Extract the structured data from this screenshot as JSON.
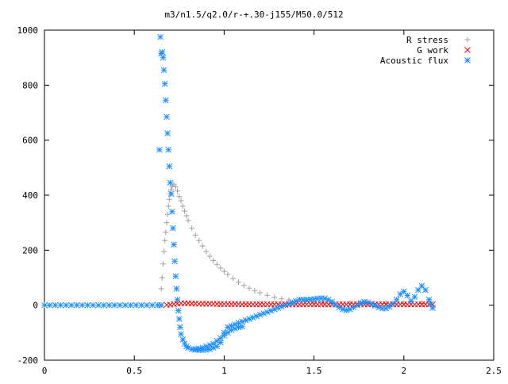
{
  "chart_data": {
    "type": "scatter",
    "title": "m3/n1.5/q2.0/r-+.30-j155/M50.0/512",
    "xlabel": "",
    "ylabel": "",
    "xlim": [
      0,
      2.5
    ],
    "ylim": [
      -200,
      1000
    ],
    "xticks": [
      "0",
      "0.5",
      "1",
      "1.5",
      "2",
      "2.5"
    ],
    "yticks": [
      "-200",
      "0",
      "200",
      "400",
      "600",
      "800",
      "1000"
    ],
    "grid": false,
    "legend_position": "top-right",
    "series": [
      {
        "name": "R stress",
        "marker": "plus",
        "color": "#a0a0a0",
        "points": [
          [
            0.65,
            60
          ],
          [
            0.655,
            100
          ],
          [
            0.66,
            150
          ],
          [
            0.665,
            195
          ],
          [
            0.67,
            235
          ],
          [
            0.675,
            265
          ],
          [
            0.68,
            300
          ],
          [
            0.685,
            330
          ],
          [
            0.69,
            360
          ],
          [
            0.695,
            385
          ],
          [
            0.7,
            405
          ],
          [
            0.705,
            420
          ],
          [
            0.71,
            432
          ],
          [
            0.72,
            440
          ],
          [
            0.73,
            430
          ],
          [
            0.74,
            415
          ],
          [
            0.75,
            395
          ],
          [
            0.76,
            380
          ],
          [
            0.77,
            360
          ],
          [
            0.78,
            342
          ],
          [
            0.79,
            325
          ],
          [
            0.8,
            308
          ],
          [
            0.82,
            280
          ],
          [
            0.84,
            255
          ],
          [
            0.86,
            235
          ],
          [
            0.88,
            215
          ],
          [
            0.9,
            195
          ],
          [
            0.92,
            178
          ],
          [
            0.94,
            162
          ],
          [
            0.96,
            148
          ],
          [
            0.98,
            135
          ],
          [
            1.0,
            123
          ],
          [
            1.02,
            112
          ],
          [
            1.05,
            97
          ],
          [
            1.08,
            84
          ],
          [
            1.11,
            72
          ],
          [
            1.14,
            62
          ],
          [
            1.17,
            53
          ],
          [
            1.2,
            45
          ],
          [
            1.24,
            36
          ],
          [
            1.28,
            29
          ],
          [
            1.32,
            23
          ],
          [
            1.36,
            19
          ],
          [
            1.4,
            16
          ],
          [
            1.45,
            13
          ],
          [
            1.5,
            11
          ],
          [
            1.55,
            10
          ],
          [
            1.6,
            9
          ],
          [
            1.7,
            8
          ],
          [
            1.8,
            7
          ],
          [
            1.9,
            7
          ],
          [
            2.0,
            6
          ],
          [
            2.1,
            6
          ],
          [
            2.15,
            6
          ]
        ]
      },
      {
        "name": "G work",
        "marker": "cross",
        "color": "#ff0000",
        "points": [
          [
            0.65,
            0
          ],
          [
            0.68,
            1
          ],
          [
            0.7,
            2
          ],
          [
            0.72,
            4
          ],
          [
            0.74,
            6
          ],
          [
            0.76,
            7
          ],
          [
            0.78,
            7
          ],
          [
            0.8,
            7
          ],
          [
            0.82,
            6
          ],
          [
            0.84,
            6
          ],
          [
            0.86,
            5
          ],
          [
            0.88,
            5
          ],
          [
            0.9,
            5
          ],
          [
            0.92,
            5
          ],
          [
            0.94,
            5
          ],
          [
            0.96,
            4
          ],
          [
            0.98,
            4
          ],
          [
            1.0,
            4
          ],
          [
            1.02,
            4
          ],
          [
            1.04,
            4
          ],
          [
            1.06,
            4
          ],
          [
            1.08,
            4
          ],
          [
            1.1,
            3
          ],
          [
            1.12,
            3
          ],
          [
            1.14,
            3
          ],
          [
            1.16,
            3
          ],
          [
            1.18,
            3
          ],
          [
            1.2,
            3
          ],
          [
            1.22,
            3
          ],
          [
            1.24,
            3
          ],
          [
            1.26,
            3
          ],
          [
            1.28,
            3
          ],
          [
            1.3,
            3
          ],
          [
            1.32,
            3
          ],
          [
            1.34,
            3
          ],
          [
            1.36,
            3
          ],
          [
            1.38,
            3
          ],
          [
            1.4,
            3
          ],
          [
            1.42,
            3
          ],
          [
            1.44,
            3
          ],
          [
            1.46,
            3
          ],
          [
            1.48,
            3
          ],
          [
            1.5,
            3
          ],
          [
            1.52,
            3
          ],
          [
            1.54,
            3
          ],
          [
            1.56,
            3
          ],
          [
            1.58,
            3
          ],
          [
            1.6,
            3
          ],
          [
            1.62,
            3
          ],
          [
            1.64,
            3
          ],
          [
            1.66,
            3
          ],
          [
            1.68,
            3
          ],
          [
            1.7,
            3
          ],
          [
            1.72,
            3
          ],
          [
            1.74,
            3
          ],
          [
            1.76,
            3
          ],
          [
            1.78,
            3
          ],
          [
            1.8,
            3
          ],
          [
            1.82,
            3
          ],
          [
            1.84,
            3
          ],
          [
            1.86,
            3
          ],
          [
            1.88,
            3
          ],
          [
            1.9,
            3
          ],
          [
            1.92,
            3
          ],
          [
            1.94,
            3
          ],
          [
            1.96,
            3
          ],
          [
            1.98,
            3
          ],
          [
            2.0,
            3
          ],
          [
            2.02,
            3
          ],
          [
            2.04,
            3
          ],
          [
            2.06,
            3
          ],
          [
            2.08,
            3
          ],
          [
            2.1,
            3
          ],
          [
            2.12,
            3
          ],
          [
            2.14,
            3
          ],
          [
            2.16,
            3
          ]
        ]
      },
      {
        "name": "Acoustic flux",
        "marker": "star",
        "color": "#1e90ff",
        "points": [
          [
            0.0,
            0
          ],
          [
            0.03,
            0
          ],
          [
            0.06,
            0
          ],
          [
            0.09,
            0
          ],
          [
            0.12,
            0
          ],
          [
            0.15,
            0
          ],
          [
            0.18,
            0
          ],
          [
            0.21,
            0
          ],
          [
            0.24,
            0
          ],
          [
            0.27,
            0
          ],
          [
            0.3,
            0
          ],
          [
            0.33,
            0
          ],
          [
            0.36,
            0
          ],
          [
            0.39,
            0
          ],
          [
            0.42,
            0
          ],
          [
            0.45,
            0
          ],
          [
            0.48,
            0
          ],
          [
            0.51,
            0
          ],
          [
            0.54,
            0
          ],
          [
            0.57,
            0
          ],
          [
            0.6,
            0
          ],
          [
            0.63,
            0
          ],
          [
            0.65,
            0
          ],
          [
            0.64,
            565
          ],
          [
            0.645,
            975
          ],
          [
            0.65,
            915
          ],
          [
            0.655,
            920
          ],
          [
            0.66,
            900
          ],
          [
            0.665,
            855
          ],
          [
            0.67,
            805
          ],
          [
            0.675,
            745
          ],
          [
            0.68,
            685
          ],
          [
            0.685,
            625
          ],
          [
            0.69,
            565
          ],
          [
            0.695,
            505
          ],
          [
            0.7,
            445
          ],
          [
            0.705,
            405
          ],
          [
            0.71,
            340
          ],
          [
            0.715,
            280
          ],
          [
            0.72,
            220
          ],
          [
            0.725,
            160
          ],
          [
            0.73,
            105
          ],
          [
            0.735,
            60
          ],
          [
            0.74,
            20
          ],
          [
            0.745,
            -20
          ],
          [
            0.75,
            -50
          ],
          [
            0.755,
            -80
          ],
          [
            0.76,
            -105
          ],
          [
            0.77,
            -125
          ],
          [
            0.78,
            -140
          ],
          [
            0.79,
            -150
          ],
          [
            0.8,
            -155
          ],
          [
            0.82,
            -160
          ],
          [
            0.84,
            -162
          ],
          [
            0.86,
            -163
          ],
          [
            0.88,
            -163
          ],
          [
            0.9,
            -162
          ],
          [
            0.92,
            -160
          ],
          [
            0.94,
            -155
          ],
          [
            0.96,
            -150
          ],
          [
            0.98,
            -135
          ],
          [
            1.0,
            -100
          ],
          [
            1.02,
            -80
          ],
          [
            1.04,
            -75
          ],
          [
            1.06,
            -70
          ],
          [
            1.08,
            -65
          ],
          [
            1.1,
            -60
          ],
          [
            1.12,
            -55
          ],
          [
            1.14,
            -50
          ],
          [
            1.16,
            -45
          ],
          [
            1.18,
            -40
          ],
          [
            1.2,
            -35
          ],
          [
            1.22,
            -30
          ],
          [
            1.24,
            -25
          ],
          [
            1.26,
            -20
          ],
          [
            1.28,
            -15
          ],
          [
            1.3,
            -10
          ],
          [
            1.32,
            -5
          ],
          [
            1.34,
            0
          ],
          [
            1.36,
            5
          ],
          [
            1.38,
            10
          ],
          [
            1.4,
            15
          ],
          [
            1.42,
            20
          ],
          [
            1.44,
            20
          ],
          [
            1.46,
            20
          ],
          [
            1.48,
            21
          ],
          [
            1.5,
            22
          ],
          [
            1.52,
            24
          ],
          [
            1.54,
            25
          ],
          [
            1.56,
            24
          ],
          [
            1.58,
            20
          ],
          [
            1.6,
            12
          ],
          [
            1.62,
            2
          ],
          [
            1.64,
            -8
          ],
          [
            1.66,
            -15
          ],
          [
            1.68,
            -18
          ],
          [
            1.7,
            -15
          ],
          [
            1.72,
            -8
          ],
          [
            1.74,
            0
          ],
          [
            1.76,
            8
          ],
          [
            1.78,
            12
          ],
          [
            1.8,
            10
          ],
          [
            1.82,
            5
          ],
          [
            1.84,
            -2
          ],
          [
            1.86,
            -8
          ],
          [
            1.88,
            -12
          ],
          [
            1.9,
            -12
          ],
          [
            1.92,
            -5
          ],
          [
            1.94,
            5
          ],
          [
            1.96,
            20
          ],
          [
            1.98,
            40
          ],
          [
            2.0,
            50
          ],
          [
            2.02,
            35
          ],
          [
            2.04,
            15
          ],
          [
            2.06,
            30
          ],
          [
            2.08,
            55
          ],
          [
            2.1,
            70
          ],
          [
            2.12,
            55
          ],
          [
            2.14,
            20
          ],
          [
            2.15,
            5
          ],
          [
            2.16,
            -10
          ],
          [
            0.84,
            -160
          ],
          [
            0.86,
            -158
          ],
          [
            0.88,
            -155
          ],
          [
            0.9,
            -150
          ],
          [
            0.92,
            -145
          ],
          [
            0.94,
            -140
          ],
          [
            0.96,
            -130
          ],
          [
            0.98,
            -120
          ],
          [
            1.0,
            -110
          ],
          [
            1.02,
            -100
          ],
          [
            1.04,
            -90
          ],
          [
            1.06,
            -85
          ],
          [
            1.08,
            -80
          ],
          [
            1.1,
            -78
          ]
        ]
      }
    ]
  }
}
